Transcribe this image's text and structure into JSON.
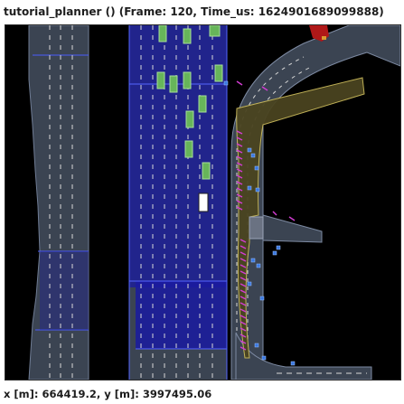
{
  "window": {
    "title": "tutorial_planner () (Frame: 120, Time_us: 1624901689099888)"
  },
  "status": {
    "coordinates": "x [m]: 664419.2, y [m]: 3997495.06"
  },
  "colors": {
    "background": "#000000",
    "road_surface": "#3b4452",
    "selected_lane": "#1a1aa0",
    "lane_border": "#4b5cff",
    "lane_marking": "#e8e8e8",
    "planned_path": "#4a4420",
    "planned_path_border": "#c8b85a",
    "vehicle": "#67b55a",
    "ego_vehicle": "#ffffff",
    "pedestrian": "#3a78e0",
    "trajectory_marker": "#d23cd2",
    "stop_sign": "#b01818"
  },
  "icons": {
    "vehicle": "vehicle-box-icon",
    "ego": "ego-vehicle-icon",
    "pedestrian": "pedestrian-icon"
  }
}
